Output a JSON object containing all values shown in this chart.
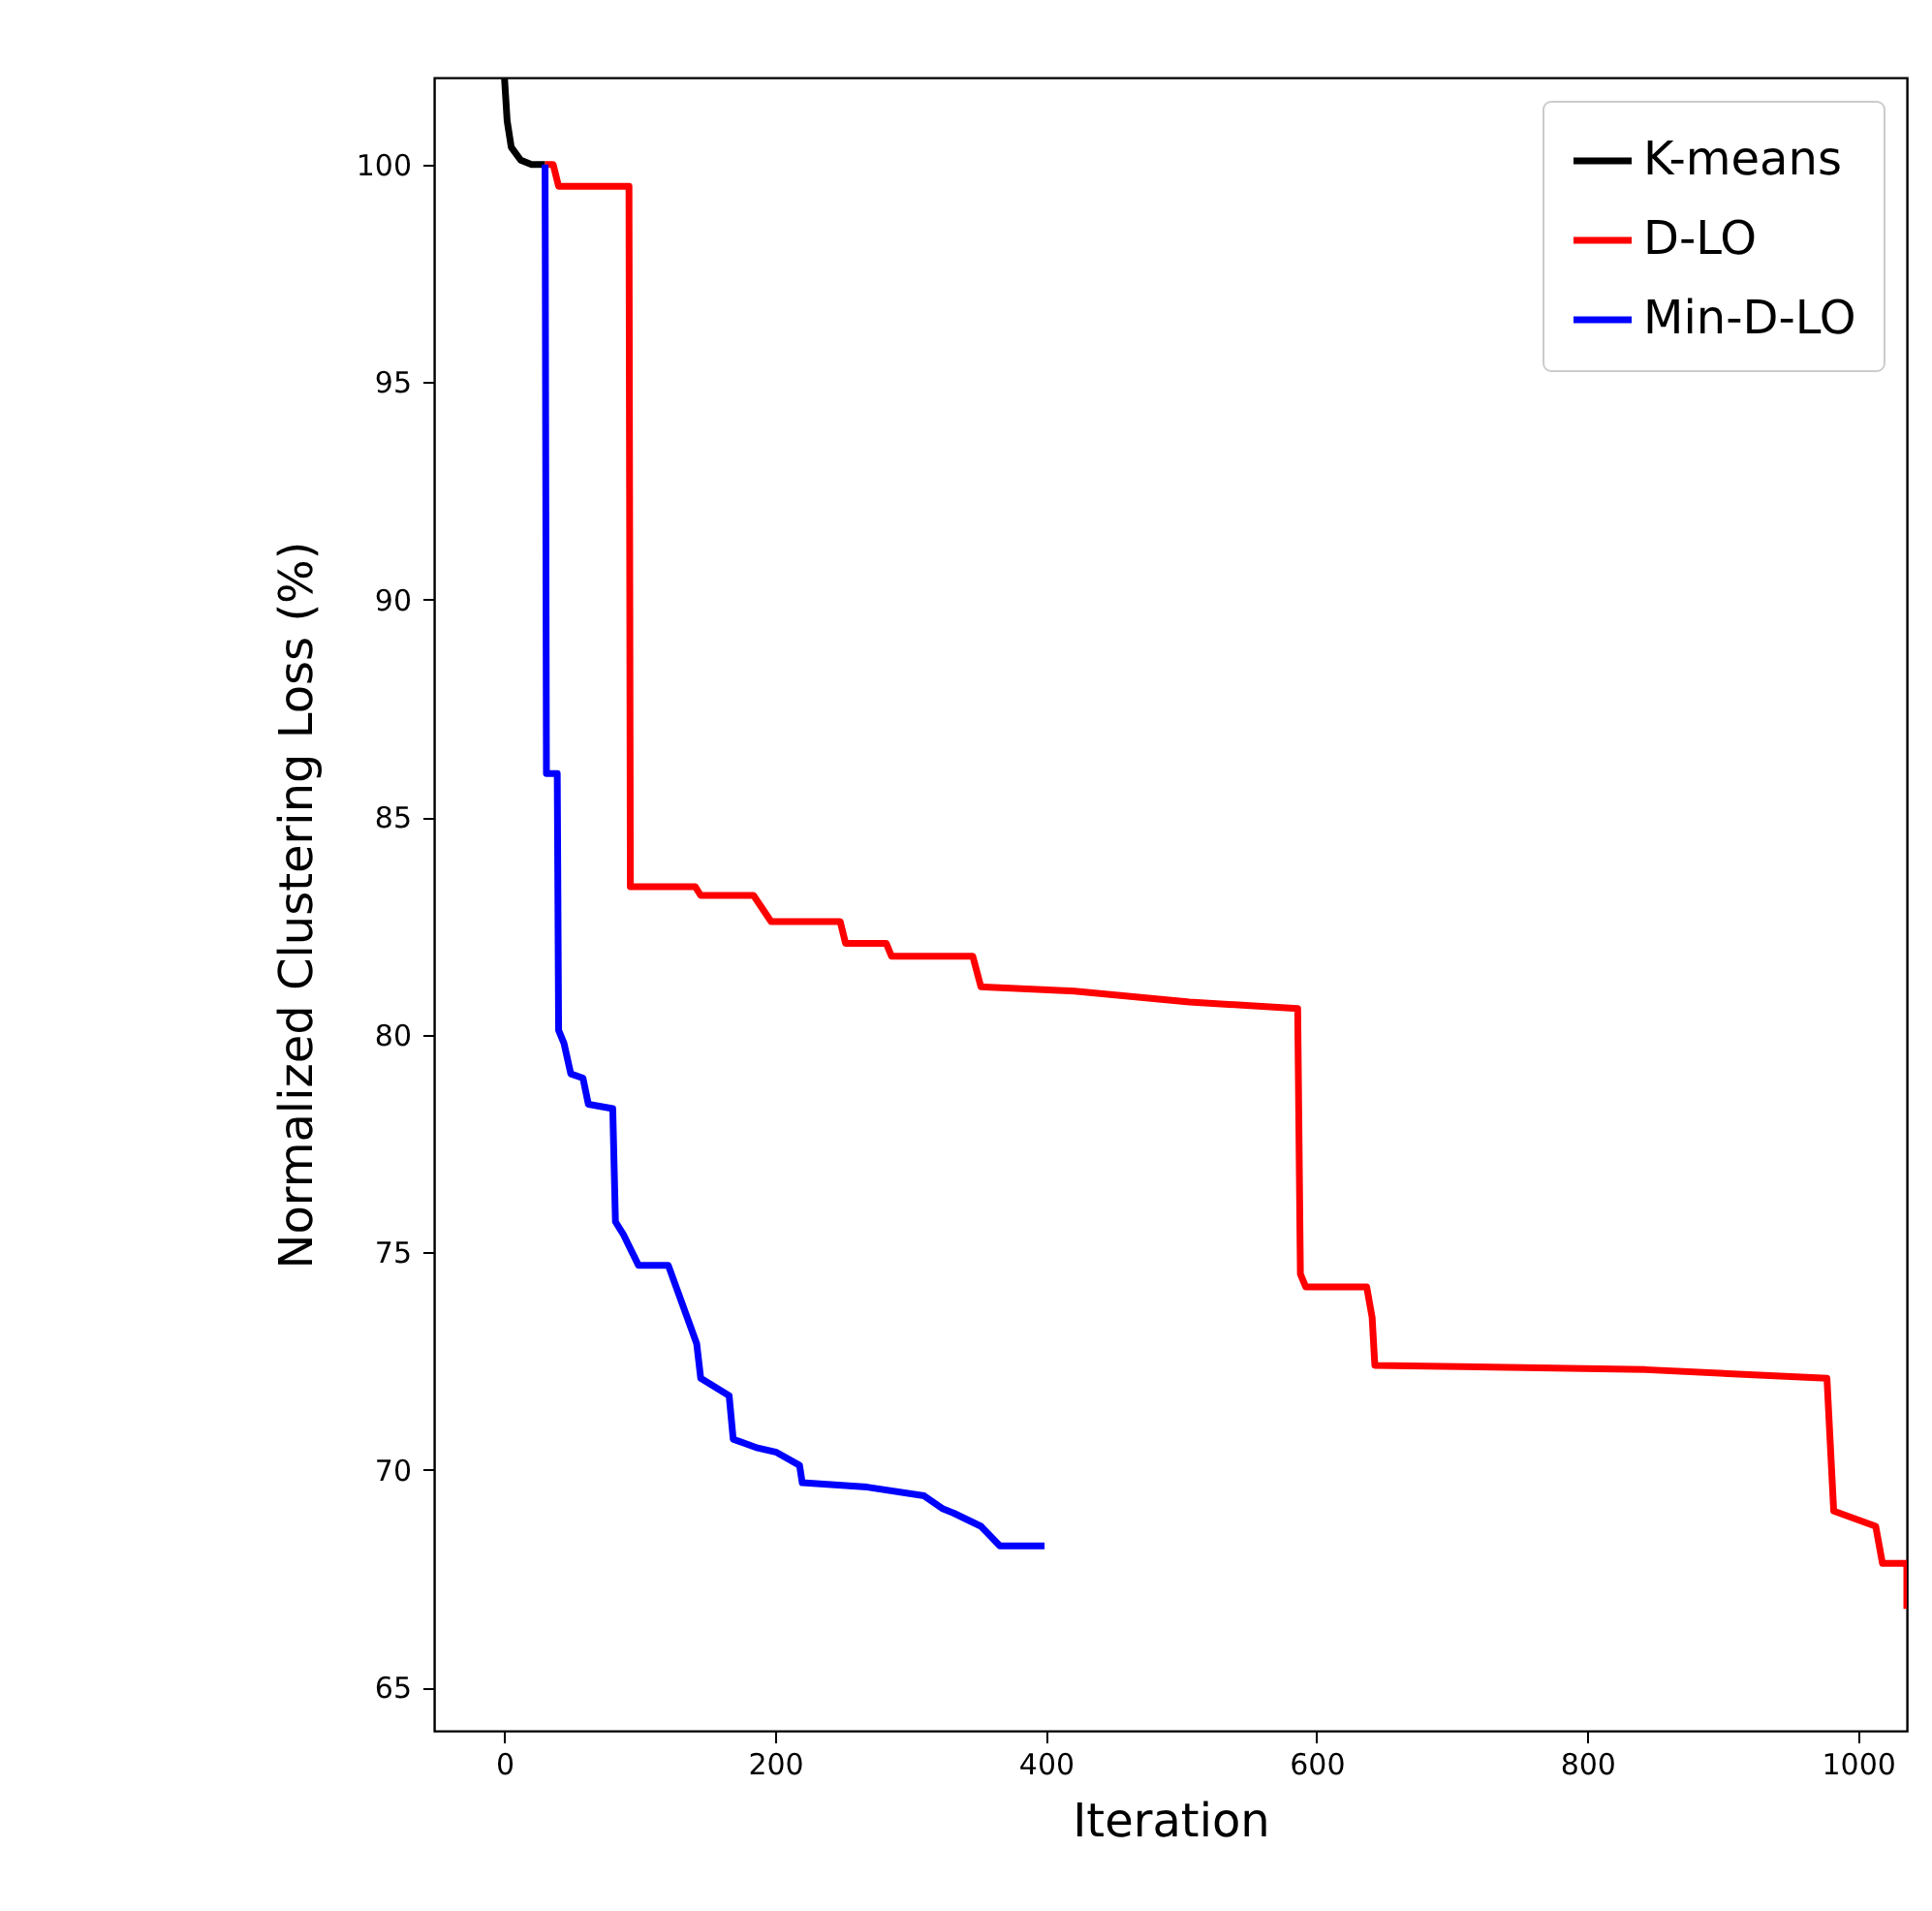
{
  "chart_data": {
    "type": "line",
    "xlabel": "Iteration",
    "ylabel": "Normalized Clustering Loss (%)",
    "xlim": [
      -52,
      1036
    ],
    "ylim": [
      64,
      102
    ],
    "xticks": [
      0,
      200,
      400,
      600,
      800,
      1000
    ],
    "yticks": [
      65,
      70,
      75,
      80,
      85,
      90,
      95,
      100
    ],
    "grid": false,
    "legend": "top right",
    "series": [
      {
        "name": "K-means",
        "color": "#000000",
        "x": [
          0,
          2,
          5,
          12,
          20,
          30
        ],
        "values": [
          102,
          101,
          100.4,
          100.1,
          100.0,
          100.0
        ]
      },
      {
        "name": "D-LO",
        "color": "#ff0000",
        "x": [
          30,
          36,
          40,
          92,
          93,
          141,
          145,
          184,
          197,
          248,
          252,
          282,
          286,
          346,
          352,
          421,
          506,
          586,
          588,
          592,
          637,
          641,
          643,
          843,
          977,
          982,
          1013,
          1018,
          1036,
          1036
        ],
        "values": [
          100,
          100,
          99.5,
          99.5,
          83.4,
          83.4,
          83.2,
          83.2,
          82.6,
          82.6,
          82.1,
          82.1,
          81.8,
          81.8,
          81.1,
          81.0,
          80.75,
          80.6,
          74.5,
          74.2,
          74.2,
          73.5,
          72.4,
          72.3,
          72.1,
          69.05,
          68.7,
          67.85,
          67.85,
          66.8
        ]
      },
      {
        "name": "Min-D-LO",
        "color": "#0000ff",
        "x": [
          30,
          31,
          39,
          40,
          44,
          49,
          58,
          62,
          80,
          82,
          88,
          99,
          121,
          135,
          142,
          145,
          166,
          169,
          187,
          201,
          218,
          220,
          268,
          310,
          324,
          332,
          352,
          366,
          399
        ],
        "values": [
          100,
          86.0,
          86.0,
          80.1,
          79.8,
          79.1,
          79.0,
          78.4,
          78.3,
          75.7,
          75.4,
          74.7,
          74.7,
          73.5,
          72.9,
          72.1,
          71.7,
          70.7,
          70.5,
          70.4,
          70.1,
          69.7,
          69.6,
          69.4,
          69.1,
          69.0,
          68.7,
          68.25,
          68.25
        ]
      }
    ]
  }
}
